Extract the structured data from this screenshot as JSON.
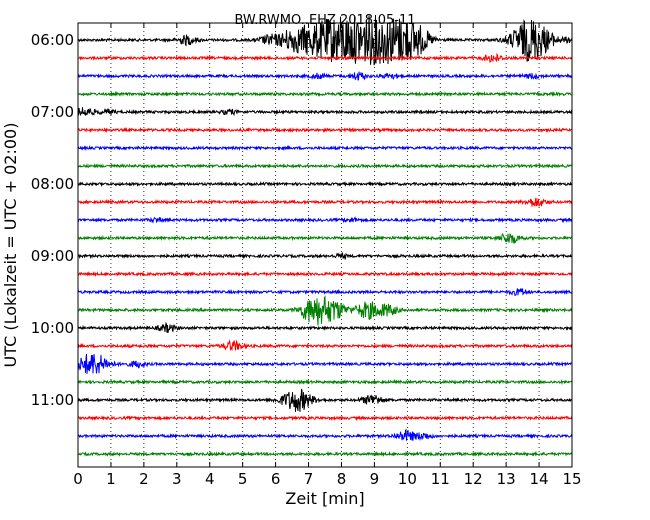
{
  "chart_data": {
    "type": "line",
    "title": "BW.RWMO..EHZ 2018-05-11",
    "xlabel": "Zeit  [min]",
    "ylabel": "UTC (Lokalzeit = UTC + 02:00)",
    "xlim": [
      0,
      15
    ],
    "x_ticks": [
      "0",
      "1",
      "2",
      "3",
      "4",
      "5",
      "6",
      "7",
      "8",
      "9",
      "10",
      "11",
      "12",
      "13",
      "14",
      "15"
    ],
    "y_ticks": [
      {
        "label": "06:00",
        "row": 0
      },
      {
        "label": "07:00",
        "row": 4
      },
      {
        "label": "08:00",
        "row": 8
      },
      {
        "label": "09:00",
        "row": 12
      },
      {
        "label": "10:00",
        "row": 16
      },
      {
        "label": "11:00",
        "row": 20
      }
    ],
    "grid": "vertical dotted",
    "row_minutes": 15,
    "traces": [
      {
        "start": "06:00",
        "color": "#000000",
        "events": [
          {
            "t": 3.3,
            "a": 0.3
          },
          {
            "t": 5.8,
            "a": 0.3
          },
          {
            "t": 6.5,
            "a": 0.7
          },
          {
            "t": 7.0,
            "a": 0.45
          },
          {
            "t": 7.5,
            "a": 1.0
          },
          {
            "t": 8.0,
            "a": 0.8
          },
          {
            "t": 8.5,
            "a": 0.95
          },
          {
            "t": 9.0,
            "a": 0.85
          },
          {
            "t": 9.5,
            "a": 1.0
          },
          {
            "t": 10.0,
            "a": 0.85
          },
          {
            "t": 10.4,
            "a": 0.5
          },
          {
            "t": 13.55,
            "a": 0.8
          },
          {
            "t": 13.95,
            "a": 0.9
          },
          {
            "t": 15.0,
            "a": 0.2
          }
        ]
      },
      {
        "start": "06:15",
        "color": "#ff0000",
        "events": [
          {
            "t": 12.6,
            "a": 0.25
          }
        ]
      },
      {
        "start": "06:30",
        "color": "#0000ff",
        "events": [
          {
            "t": 7.3,
            "a": 0.15
          },
          {
            "t": 8.5,
            "a": 0.25
          },
          {
            "t": 9.5,
            "a": 0.15
          },
          {
            "t": 13.8,
            "a": 0.15
          }
        ]
      },
      {
        "start": "06:45",
        "color": "#008000",
        "events": []
      },
      {
        "start": "07:00",
        "color": "#000000",
        "events": [
          {
            "t": 0.2,
            "a": 0.3
          },
          {
            "t": 0.9,
            "a": 0.15
          },
          {
            "t": 4.6,
            "a": 0.15
          }
        ]
      },
      {
        "start": "07:15",
        "color": "#ff0000",
        "events": []
      },
      {
        "start": "07:30",
        "color": "#0000ff",
        "events": []
      },
      {
        "start": "07:45",
        "color": "#008000",
        "events": []
      },
      {
        "start": "08:00",
        "color": "#000000",
        "events": []
      },
      {
        "start": "08:15",
        "color": "#ff0000",
        "events": [
          {
            "t": 13.9,
            "a": 0.3
          }
        ]
      },
      {
        "start": "08:30",
        "color": "#0000ff",
        "events": [
          {
            "t": 2.4,
            "a": 0.12
          },
          {
            "t": 8.3,
            "a": 0.12
          }
        ]
      },
      {
        "start": "08:45",
        "color": "#008000",
        "events": [
          {
            "t": 13.1,
            "a": 0.35
          }
        ]
      },
      {
        "start": "09:00",
        "color": "#000000",
        "events": [
          {
            "t": 8.0,
            "a": 0.12
          }
        ]
      },
      {
        "start": "09:15",
        "color": "#ff0000",
        "events": []
      },
      {
        "start": "09:30",
        "color": "#0000ff",
        "events": [
          {
            "t": 13.4,
            "a": 0.2
          }
        ]
      },
      {
        "start": "09:45",
        "color": "#008000",
        "events": [
          {
            "t": 7.0,
            "a": 0.35
          },
          {
            "t": 7.4,
            "a": 0.85
          },
          {
            "t": 7.9,
            "a": 0.3
          },
          {
            "t": 8.8,
            "a": 0.55
          },
          {
            "t": 9.4,
            "a": 0.35
          }
        ]
      },
      {
        "start": "10:00",
        "color": "#000000",
        "events": [
          {
            "t": 2.7,
            "a": 0.25
          }
        ]
      },
      {
        "start": "10:15",
        "color": "#ff0000",
        "events": [
          {
            "t": 4.7,
            "a": 0.3
          }
        ]
      },
      {
        "start": "10:30",
        "color": "#0000ff",
        "events": [
          {
            "t": 0.45,
            "a": 0.75
          },
          {
            "t": 1.8,
            "a": 0.2
          }
        ]
      },
      {
        "start": "10:45",
        "color": "#008000",
        "events": []
      },
      {
        "start": "11:00",
        "color": "#000000",
        "events": [
          {
            "t": 6.65,
            "a": 0.75
          },
          {
            "t": 8.95,
            "a": 0.35
          }
        ]
      },
      {
        "start": "11:15",
        "color": "#ff0000",
        "events": []
      },
      {
        "start": "11:30",
        "color": "#0000ff",
        "events": [
          {
            "t": 9.95,
            "a": 0.35
          },
          {
            "t": 10.5,
            "a": 0.2
          }
        ]
      },
      {
        "start": "11:45",
        "color": "#008000",
        "events": []
      }
    ]
  }
}
